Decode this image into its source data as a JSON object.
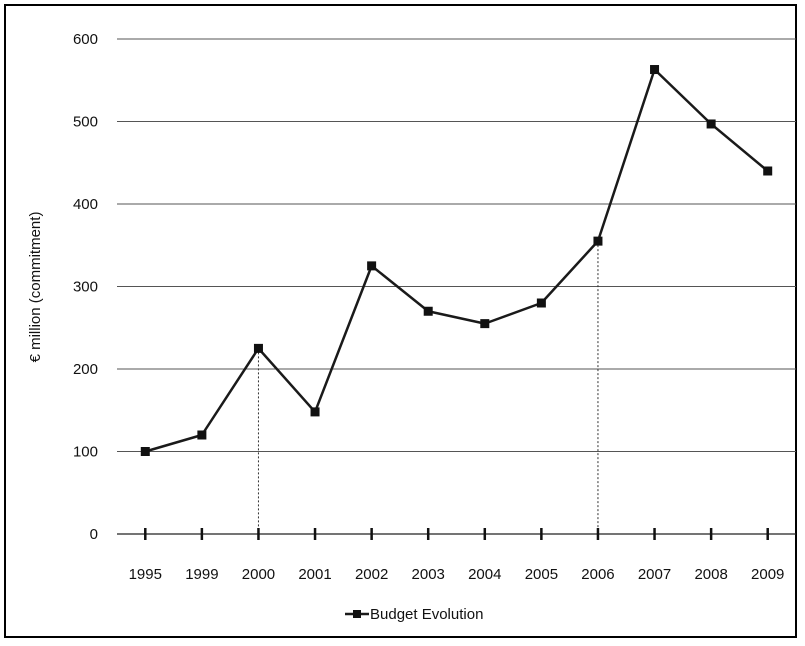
{
  "chart_data": {
    "type": "line",
    "categories": [
      "1995",
      "1999",
      "2000",
      "2001",
      "2002",
      "2003",
      "2004",
      "2005",
      "2006",
      "2007",
      "2008",
      "2009"
    ],
    "series": [
      {
        "name": "Budget Evolution",
        "values": [
          100,
          120,
          225,
          148,
          325,
          270,
          255,
          280,
          355,
          563,
          497,
          440
        ]
      }
    ],
    "ylabel": "€ million (commitment)",
    "xlabel": "",
    "ylim": [
      0,
      600
    ],
    "yticks": [
      0,
      100,
      200,
      300,
      400,
      500,
      600
    ],
    "grid": true,
    "legend_position": "bottom",
    "drop_lines_at": [
      "2000",
      "2006"
    ],
    "colors": {
      "line": "#1a1a1a",
      "grid": "#555555",
      "marker": "#111111"
    }
  }
}
